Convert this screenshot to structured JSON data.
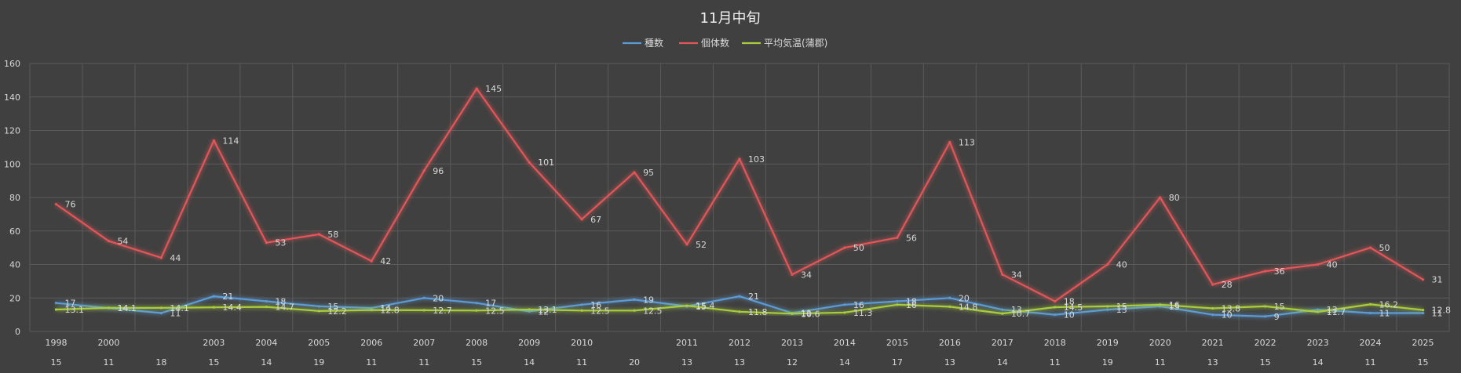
{
  "chart_data": {
    "type": "line",
    "title": "11月中旬",
    "x": [
      {
        "year": "1998",
        "day": "15"
      },
      {
        "year": "2000",
        "day": "11"
      },
      {
        "year": "",
        "day": "18"
      },
      {
        "year": "2003",
        "day": "15"
      },
      {
        "year": "2004",
        "day": "14"
      },
      {
        "year": "2005",
        "day": "19"
      },
      {
        "year": "2006",
        "day": "11"
      },
      {
        "year": "2007",
        "day": "11"
      },
      {
        "year": "2008",
        "day": "15"
      },
      {
        "year": "2009",
        "day": "14"
      },
      {
        "year": "2010",
        "day": "11"
      },
      {
        "year": "",
        "day": "20"
      },
      {
        "year": "2011",
        "day": "13"
      },
      {
        "year": "2012",
        "day": "13"
      },
      {
        "year": "2013",
        "day": "12"
      },
      {
        "year": "2014",
        "day": "14"
      },
      {
        "year": "2015",
        "day": "17"
      },
      {
        "year": "2016",
        "day": "13"
      },
      {
        "year": "2017",
        "day": "14"
      },
      {
        "year": "2018",
        "day": "11"
      },
      {
        "year": "2019",
        "day": "19"
      },
      {
        "year": "2020",
        "day": "11"
      },
      {
        "year": "2021",
        "day": "13"
      },
      {
        "year": "2022",
        "day": "15"
      },
      {
        "year": "2023",
        "day": "14"
      },
      {
        "year": "2024",
        "day": "11"
      },
      {
        "year": "2025",
        "day": "15"
      }
    ],
    "series": [
      {
        "name": "種数",
        "color": "#5b9bd5",
        "values": [
          17,
          14,
          11,
          21,
          18,
          15,
          14,
          20,
          17,
          12,
          16,
          19,
          15,
          21,
          11,
          16,
          18,
          20,
          13,
          10,
          13,
          15,
          10,
          9,
          13,
          11,
          11
        ],
        "labels": [
          "17",
          "14",
          "11",
          "21",
          "18",
          "15",
          "14",
          "20",
          "17",
          "12",
          "16",
          "19",
          "15",
          "21",
          "11",
          "16",
          "18",
          "20",
          "13",
          "10",
          "13",
          "15",
          "10",
          "9",
          "13",
          "11",
          "11"
        ]
      },
      {
        "name": "個体数",
        "color": "#e15759",
        "values": [
          76,
          54,
          44,
          114,
          53,
          58,
          42,
          96,
          145,
          101,
          67,
          95,
          52,
          103,
          34,
          50,
          56,
          113,
          34,
          18,
          40,
          80,
          28,
          36,
          40,
          50,
          31
        ],
        "labels": [
          "76",
          "54",
          "44",
          "114",
          "53",
          "58",
          "42",
          "96",
          "145",
          "101",
          "67",
          "95",
          "52",
          "103",
          "34",
          "50",
          "56",
          "113",
          "34",
          "18",
          "40",
          "80",
          "28",
          "36",
          "40",
          "50",
          "31"
        ]
      },
      {
        "name": "平均気温(蒲郡)",
        "color": "#a9cc3c",
        "values": [
          13.1,
          14.1,
          14.1,
          14.4,
          14.7,
          12.2,
          12.8,
          12.7,
          12.5,
          13.1,
          12.5,
          12.5,
          15.4,
          11.8,
          10.6,
          11.3,
          16,
          14.8,
          10.7,
          14.5,
          15,
          16,
          13.8,
          15,
          11.7,
          16.2,
          12.8
        ],
        "labels": [
          "13.1",
          "14.1",
          "14.1",
          "14.4",
          "14.7",
          "12.2",
          "12.8",
          "12.7",
          "12.5",
          "13.1",
          "12.5",
          "12.5",
          "15.4",
          "11.8",
          "10.6",
          "11.3",
          "16",
          "14.8",
          "10.7",
          "14.5",
          "15",
          "16",
          "13.8",
          "15",
          "11.7",
          "16.2",
          "12.8"
        ]
      }
    ],
    "y_ticks": [
      "0",
      "20",
      "40",
      "60",
      "80",
      "100",
      "120",
      "140",
      "160"
    ],
    "ylim": [
      0,
      160
    ],
    "grid": true,
    "legend_position": "top"
  }
}
